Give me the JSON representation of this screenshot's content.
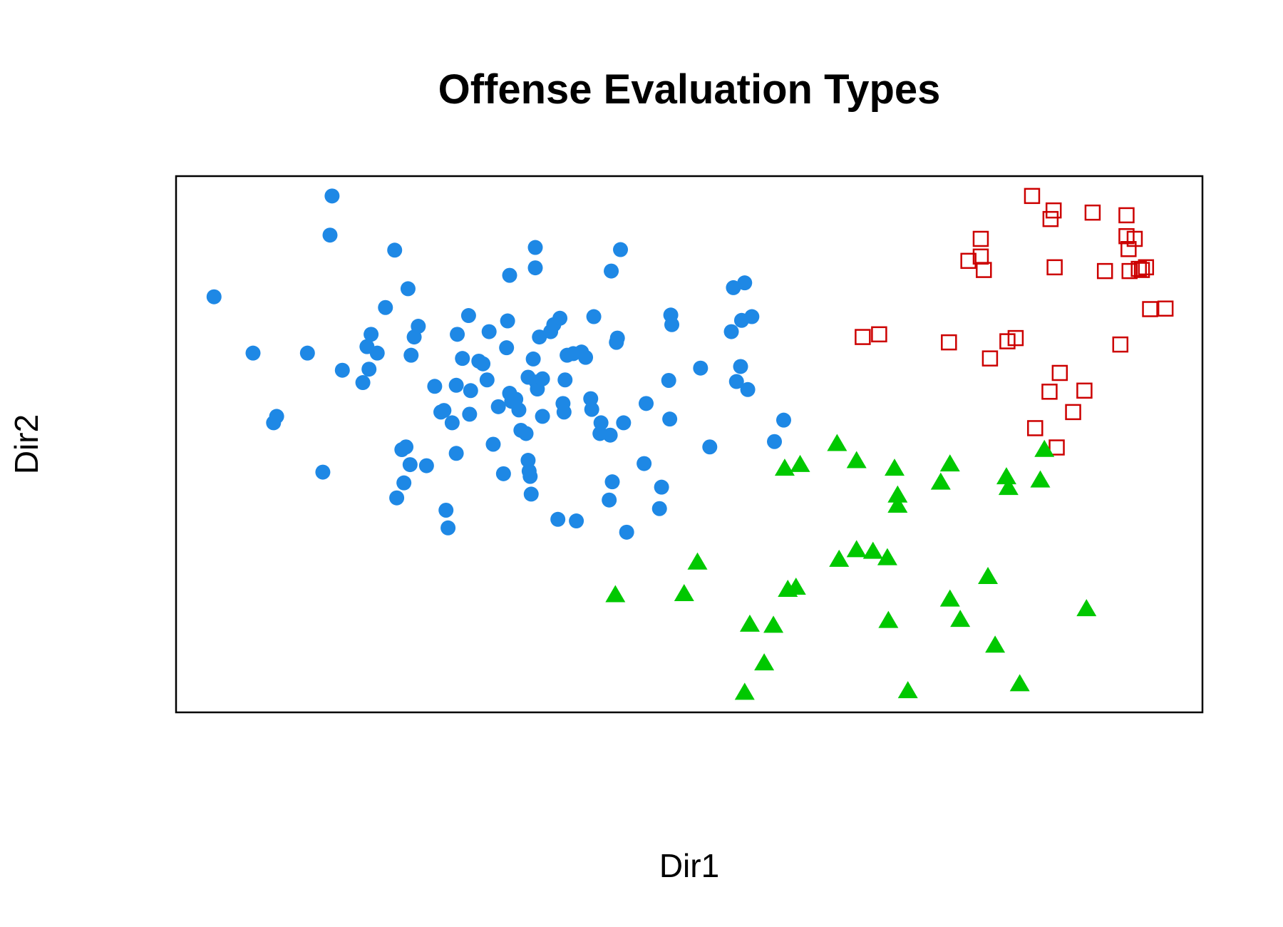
{
  "chart_data": {
    "type": "scatter",
    "title": "Offense Evaluation Types",
    "xlabel": "Dir1",
    "ylabel": "Dir2",
    "xlim": [
      0,
      100
    ],
    "ylim": [
      0,
      100
    ],
    "axis_ticks": false,
    "grid": false,
    "legend": "none",
    "series": [
      {
        "marker": "filled-circle",
        "color": "#1E88E5",
        "points": [
          [
            3.7,
            77.5
          ],
          [
            7.5,
            67
          ],
          [
            9.5,
            54
          ],
          [
            9.8,
            55.2
          ],
          [
            12.8,
            67
          ],
          [
            14.3,
            44.8
          ],
          [
            15.0,
            89
          ],
          [
            15.2,
            96.3
          ],
          [
            16.2,
            63.8
          ],
          [
            18.2,
            61.5
          ],
          [
            18.8,
            64
          ],
          [
            18.6,
            68.2
          ],
          [
            19.0,
            70.5
          ],
          [
            19.6,
            67
          ],
          [
            20.4,
            75.5
          ],
          [
            21.3,
            86.2
          ],
          [
            21.5,
            40
          ],
          [
            22.2,
            42.8
          ],
          [
            22.0,
            49
          ],
          [
            22.4,
            49.5
          ],
          [
            22.6,
            79
          ],
          [
            22.8,
            46.2
          ],
          [
            22.9,
            66.6
          ],
          [
            23.2,
            70
          ],
          [
            23.6,
            72
          ],
          [
            24.4,
            46
          ],
          [
            25.2,
            60.8
          ],
          [
            25.8,
            56
          ],
          [
            26.1,
            56.3
          ],
          [
            26.3,
            37.7
          ],
          [
            26.5,
            34.4
          ],
          [
            26.9,
            54
          ],
          [
            27.3,
            48.3
          ],
          [
            27.3,
            61
          ],
          [
            27.4,
            70.5
          ],
          [
            27.9,
            66
          ],
          [
            28.7,
            60
          ],
          [
            28.6,
            55.6
          ],
          [
            28.5,
            74
          ],
          [
            29.5,
            65.5
          ],
          [
            29.9,
            65
          ],
          [
            30.3,
            62
          ],
          [
            30.5,
            71
          ],
          [
            30.9,
            50
          ],
          [
            31.4,
            57
          ],
          [
            31.9,
            44.5
          ],
          [
            32.2,
            68
          ],
          [
            32.3,
            73
          ],
          [
            32.5,
            81.5
          ],
          [
            32.5,
            59.5
          ],
          [
            32.7,
            58
          ],
          [
            33.1,
            58.4
          ],
          [
            33.4,
            56.4
          ],
          [
            33.6,
            52.6
          ],
          [
            34.1,
            52
          ],
          [
            34.3,
            47
          ],
          [
            34.3,
            62.5
          ],
          [
            34.4,
            45
          ],
          [
            34.5,
            44
          ],
          [
            34.6,
            40.7
          ],
          [
            34.8,
            65.9
          ],
          [
            35.0,
            86.7
          ],
          [
            35.0,
            82.9
          ],
          [
            35.1,
            61.6
          ],
          [
            35.2,
            60.3
          ],
          [
            35.4,
            70
          ],
          [
            35.7,
            55.2
          ],
          [
            35.7,
            62.2
          ],
          [
            36.5,
            71
          ],
          [
            36.8,
            72.3
          ],
          [
            37.2,
            36
          ],
          [
            37.4,
            73.5
          ],
          [
            37.7,
            57.6
          ],
          [
            37.8,
            56
          ],
          [
            37.9,
            62
          ],
          [
            38.1,
            66.6
          ],
          [
            38.7,
            66.9
          ],
          [
            39.0,
            35.7
          ],
          [
            39.5,
            67.2
          ],
          [
            39.9,
            66.2
          ],
          [
            40.4,
            58.5
          ],
          [
            40.5,
            56.5
          ],
          [
            40.7,
            73.8
          ],
          [
            41.3,
            52
          ],
          [
            41.4,
            54
          ],
          [
            42.2,
            39.6
          ],
          [
            42.3,
            51.7
          ],
          [
            42.4,
            82.3
          ],
          [
            42.5,
            43
          ],
          [
            42.9,
            69
          ],
          [
            43.0,
            69.8
          ],
          [
            43.3,
            86.3
          ],
          [
            43.6,
            54
          ],
          [
            43.9,
            33.6
          ],
          [
            45.6,
            46.4
          ],
          [
            45.8,
            57.6
          ],
          [
            47.1,
            38
          ],
          [
            47.3,
            42
          ],
          [
            48.0,
            61.9
          ],
          [
            48.1,
            54.7
          ],
          [
            48.3,
            72.3
          ],
          [
            48.2,
            74.1
          ],
          [
            51.1,
            64.2
          ],
          [
            52.0,
            49.5
          ],
          [
            54.1,
            71
          ],
          [
            54.3,
            79.2
          ],
          [
            54.6,
            61.7
          ],
          [
            55.0,
            64.5
          ],
          [
            55.1,
            73.1
          ],
          [
            55.4,
            80.1
          ],
          [
            55.7,
            60.2
          ],
          [
            56.1,
            73.8
          ],
          [
            58.3,
            50.5
          ],
          [
            59.2,
            54.5
          ]
        ]
      },
      {
        "marker": "open-square",
        "color": "#CC0000",
        "points": [
          [
            66.9,
            70
          ],
          [
            68.5,
            70.5
          ],
          [
            75.3,
            69
          ],
          [
            77.2,
            84.2
          ],
          [
            78.4,
            85
          ],
          [
            78.4,
            88.3
          ],
          [
            78.7,
            82.5
          ],
          [
            79.3,
            66
          ],
          [
            81.0,
            69.2
          ],
          [
            81.8,
            69.8
          ],
          [
            83.4,
            96.3
          ],
          [
            83.7,
            53
          ],
          [
            85.1,
            59.8
          ],
          [
            85.2,
            92
          ],
          [
            85.5,
            93.6
          ],
          [
            85.6,
            83
          ],
          [
            85.8,
            49.4
          ],
          [
            86.1,
            63.3
          ],
          [
            87.4,
            56
          ],
          [
            88.5,
            60
          ],
          [
            89.3,
            93.2
          ],
          [
            90.5,
            82.3
          ],
          [
            92.0,
            68.6
          ],
          [
            92.6,
            92.7
          ],
          [
            92.6,
            88.8
          ],
          [
            92.8,
            86.4
          ],
          [
            92.9,
            82.3
          ],
          [
            93.4,
            88.3
          ],
          [
            93.8,
            82.7
          ],
          [
            94.1,
            82.5
          ],
          [
            94.5,
            83
          ],
          [
            94.9,
            75.2
          ],
          [
            96.4,
            75.3
          ]
        ]
      },
      {
        "marker": "filled-triangle",
        "color": "#00C800",
        "points": [
          [
            42.8,
            22
          ],
          [
            49.5,
            22.2
          ],
          [
            50.8,
            28.1
          ],
          [
            55.4,
            3.8
          ],
          [
            55.9,
            16.5
          ],
          [
            57.3,
            9.3
          ],
          [
            58.2,
            16.3
          ],
          [
            59.3,
            45.6
          ],
          [
            59.6,
            23
          ],
          [
            60.4,
            23.4
          ],
          [
            60.8,
            46.3
          ],
          [
            64.4,
            50.2
          ],
          [
            64.6,
            28.6
          ],
          [
            66.3,
            47
          ],
          [
            66.3,
            30.4
          ],
          [
            67.9,
            30.1
          ],
          [
            69.3,
            28.9
          ],
          [
            69.4,
            17.2
          ],
          [
            70.0,
            45.6
          ],
          [
            70.3,
            38.7
          ],
          [
            70.3,
            40.6
          ],
          [
            71.3,
            4.1
          ],
          [
            74.5,
            43
          ],
          [
            75.4,
            46.4
          ],
          [
            75.4,
            21.2
          ],
          [
            76.4,
            17.4
          ],
          [
            79.1,
            25.4
          ],
          [
            79.8,
            12.6
          ],
          [
            80.9,
            44
          ],
          [
            81.1,
            42
          ],
          [
            82.2,
            5.4
          ],
          [
            84.2,
            43.4
          ],
          [
            84.6,
            49.1
          ],
          [
            88.7,
            19.4
          ]
        ]
      }
    ]
  },
  "colors": {
    "background": "#FFFFFF",
    "axes_frame": "#000000",
    "text": "#000000"
  }
}
